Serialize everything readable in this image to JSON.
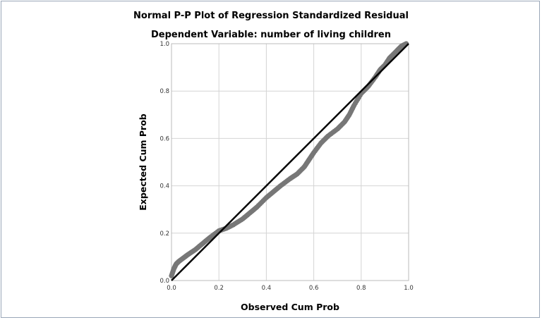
{
  "chart_data": {
    "type": "scatter",
    "title": "Normal P-P Plot of Regression Standardized Residual",
    "subtitle": "Dependent Variable: number of living children",
    "xlabel": "Observed Cum Prob",
    "ylabel": "Expected Cum Prob",
    "xlim": [
      0,
      1
    ],
    "ylim": [
      0,
      1
    ],
    "xticks": [
      "0.0",
      "0.2",
      "0.4",
      "0.6",
      "0.8",
      "1.0"
    ],
    "yticks": [
      "0.0",
      "0.2",
      "0.4",
      "0.6",
      "0.8",
      "1.0"
    ],
    "grid": true,
    "reference_line": {
      "from": [
        0,
        0
      ],
      "to": [
        1,
        1
      ],
      "color": "#000000"
    },
    "points_color": "#777777",
    "points": [
      [
        0,
        0.02
      ],
      [
        0.01,
        0.05
      ],
      [
        0.02,
        0.07
      ],
      [
        0.03,
        0.08
      ],
      [
        0.05,
        0.095
      ],
      [
        0.07,
        0.11
      ],
      [
        0.1,
        0.13
      ],
      [
        0.13,
        0.155
      ],
      [
        0.16,
        0.18
      ],
      [
        0.2,
        0.21
      ],
      [
        0.23,
        0.22
      ],
      [
        0.26,
        0.235
      ],
      [
        0.3,
        0.26
      ],
      [
        0.33,
        0.285
      ],
      [
        0.36,
        0.31
      ],
      [
        0.4,
        0.35
      ],
      [
        0.43,
        0.375
      ],
      [
        0.46,
        0.4
      ],
      [
        0.5,
        0.43
      ],
      [
        0.53,
        0.45
      ],
      [
        0.56,
        0.48
      ],
      [
        0.58,
        0.51
      ],
      [
        0.6,
        0.54
      ],
      [
        0.63,
        0.58
      ],
      [
        0.66,
        0.61
      ],
      [
        0.7,
        0.64
      ],
      [
        0.73,
        0.67
      ],
      [
        0.75,
        0.7
      ],
      [
        0.77,
        0.74
      ],
      [
        0.8,
        0.79
      ],
      [
        0.83,
        0.82
      ],
      [
        0.86,
        0.86
      ],
      [
        0.88,
        0.89
      ],
      [
        0.9,
        0.91
      ],
      [
        0.92,
        0.94
      ],
      [
        0.95,
        0.97
      ],
      [
        0.97,
        0.99
      ],
      [
        0.99,
        1.0
      ]
    ]
  }
}
